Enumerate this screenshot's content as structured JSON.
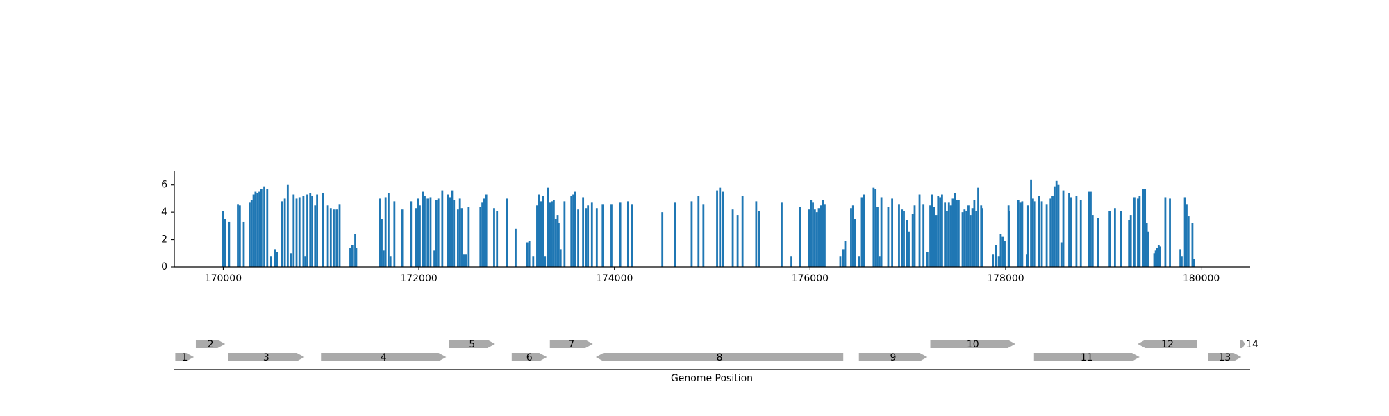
{
  "chart_data": {
    "type": "bar",
    "xlabel": "Genome Position",
    "color": "#1f77b4",
    "gene_color": "#aaaaaa",
    "xlim": [
      169500,
      180500
    ],
    "ylim": [
      0,
      7
    ],
    "xticks": [
      170000,
      172000,
      174000,
      176000,
      178000,
      180000
    ],
    "yticks": [
      0,
      2,
      4,
      6
    ],
    "x": [
      170000,
      170020,
      170060,
      170150,
      170170,
      170210,
      170270,
      170290,
      170310,
      170330,
      170350,
      170370,
      170390,
      170420,
      170450,
      170490,
      170530,
      170550,
      170600,
      170630,
      170660,
      170690,
      170720,
      170750,
      170780,
      170820,
      170840,
      170860,
      170890,
      170910,
      170940,
      170960,
      171020,
      171070,
      171100,
      171130,
      171160,
      171190,
      171300,
      171320,
      171350,
      171360,
      171600,
      171620,
      171640,
      171660,
      171690,
      171710,
      171750,
      171830,
      171920,
      171970,
      171990,
      172010,
      172040,
      172060,
      172090,
      172120,
      172160,
      172180,
      172200,
      172240,
      172300,
      172320,
      172340,
      172360,
      172400,
      172420,
      172440,
      172460,
      172480,
      172510,
      172630,
      172650,
      172670,
      172690,
      172770,
      172800,
      172900,
      172990,
      173110,
      173130,
      173170,
      173210,
      173230,
      173250,
      173270,
      173290,
      173320,
      173340,
      173360,
      173380,
      173400,
      173420,
      173430,
      173450,
      173490,
      173560,
      173580,
      173600,
      173630,
      173680,
      173710,
      173730,
      173770,
      173820,
      173880,
      173970,
      174060,
      174140,
      174180,
      174490,
      174620,
      174790,
      174860,
      174910,
      175050,
      175080,
      175110,
      175210,
      175260,
      175310,
      175450,
      175480,
      175710,
      175810,
      175900,
      175990,
      176010,
      176030,
      176050,
      176070,
      176090,
      176110,
      176130,
      176150,
      176310,
      176340,
      176360,
      176420,
      176440,
      176460,
      176500,
      176530,
      176550,
      176650,
      176670,
      176690,
      176710,
      176730,
      176800,
      176840,
      176910,
      176940,
      176960,
      176990,
      177010,
      177050,
      177070,
      177120,
      177160,
      177200,
      177230,
      177250,
      177270,
      177290,
      177310,
      177330,
      177350,
      177380,
      177400,
      177420,
      177440,
      177460,
      177480,
      177500,
      177520,
      177560,
      177580,
      177600,
      177620,
      177640,
      177660,
      177680,
      177700,
      177720,
      177750,
      177760,
      177870,
      177900,
      177930,
      177950,
      177970,
      177990,
      178030,
      178040,
      178130,
      178150,
      178170,
      178220,
      178230,
      178260,
      178280,
      178300,
      178340,
      178370,
      178420,
      178460,
      178480,
      178500,
      178520,
      178540,
      178570,
      178590,
      178650,
      178670,
      178724,
      178769,
      178850,
      178870,
      178890,
      178945,
      179063,
      179118,
      179180,
      179262,
      179280,
      179317,
      179353,
      179370,
      179407,
      179425,
      179443,
      179455,
      179520,
      179535,
      179550,
      179565,
      179580,
      179633,
      179680,
      179787,
      179800,
      179833,
      179850,
      179870,
      179910,
      179925
    ],
    "values": [
      4.1,
      3.5,
      3.3,
      4.6,
      4.5,
      3.3,
      4.7,
      4.9,
      5.3,
      5.5,
      5.4,
      5.5,
      5.7,
      5.9,
      5.7,
      0.8,
      1.3,
      1.1,
      4.8,
      5.0,
      6.0,
      1.0,
      5.3,
      5.0,
      5.1,
      5.2,
      0.8,
      5.3,
      5.4,
      5.2,
      4.5,
      5.3,
      5.4,
      4.5,
      4.3,
      4.2,
      4.2,
      4.6,
      1.4,
      1.6,
      2.4,
      1.4,
      5.0,
      3.5,
      1.2,
      5.1,
      5.4,
      0.8,
      4.8,
      4.2,
      4.8,
      4.3,
      5.0,
      4.5,
      5.5,
      5.2,
      5.0,
      5.1,
      1.2,
      4.9,
      5.0,
      5.6,
      5.3,
      5.1,
      5.6,
      4.9,
      4.2,
      5.0,
      4.3,
      0.9,
      0.9,
      4.4,
      4.4,
      4.7,
      5.0,
      5.3,
      4.3,
      4.1,
      5.0,
      2.8,
      1.8,
      1.9,
      0.8,
      4.5,
      5.3,
      4.8,
      5.2,
      0.8,
      5.8,
      4.7,
      4.8,
      4.9,
      3.5,
      3.8,
      3.2,
      1.3,
      4.8,
      5.2,
      5.3,
      5.5,
      4.2,
      5.1,
      4.3,
      4.5,
      4.7,
      4.3,
      4.6,
      4.6,
      4.7,
      4.8,
      4.6,
      4.0,
      4.7,
      4.8,
      5.2,
      4.6,
      5.6,
      5.8,
      5.5,
      4.2,
      3.8,
      5.2,
      4.8,
      4.1,
      4.7,
      0.8,
      4.4,
      4.2,
      4.9,
      4.7,
      4.2,
      4.0,
      4.3,
      4.5,
      4.9,
      4.6,
      0.8,
      1.3,
      1.9,
      4.3,
      4.5,
      3.5,
      0.8,
      5.1,
      5.3,
      5.8,
      5.7,
      4.4,
      0.8,
      5.1,
      4.4,
      5.0,
      4.6,
      4.2,
      4.1,
      3.4,
      2.6,
      3.9,
      4.5,
      5.3,
      4.6,
      1.1,
      4.5,
      5.3,
      4.4,
      3.8,
      5.2,
      5.1,
      5.3,
      4.7,
      4.1,
      4.7,
      4.5,
      5.0,
      5.4,
      4.9,
      4.9,
      4.0,
      4.2,
      4.1,
      4.5,
      3.8,
      4.3,
      4.9,
      4.1,
      5.8,
      4.5,
      4.3,
      0.9,
      1.6,
      0.8,
      2.4,
      2.2,
      1.9,
      4.5,
      4.1,
      4.9,
      4.7,
      4.8,
      0.9,
      4.5,
      6.4,
      5.0,
      4.8,
      5.2,
      4.8,
      4.6,
      5.0,
      5.2,
      5.9,
      6.3,
      6.0,
      1.8,
      5.6,
      5.4,
      5.1,
      5.2,
      4.9,
      5.5,
      5.5,
      3.8,
      3.6,
      4.1,
      4.3,
      4.1,
      3.4,
      3.8,
      5.1,
      5.0,
      5.2,
      5.7,
      5.7,
      3.2,
      2.6,
      1.0,
      1.2,
      1.4,
      1.6,
      1.5,
      5.1,
      5.0,
      1.3,
      0.8,
      5.1,
      4.6,
      3.7,
      3.2,
      0.6
    ],
    "genes": [
      {
        "label": "1",
        "start": 169510,
        "end": 169700,
        "strand": "+"
      },
      {
        "label": "2",
        "start": 169720,
        "end": 170020,
        "strand": "+"
      },
      {
        "label": "3",
        "start": 170050,
        "end": 170830,
        "strand": "+"
      },
      {
        "label": "4",
        "start": 171000,
        "end": 172280,
        "strand": "+"
      },
      {
        "label": "5",
        "start": 172310,
        "end": 172780,
        "strand": "+"
      },
      {
        "label": "6",
        "start": 172950,
        "end": 173310,
        "strand": "+"
      },
      {
        "label": "7",
        "start": 173340,
        "end": 173780,
        "strand": "+"
      },
      {
        "label": "8",
        "start": 173810,
        "end": 176340,
        "strand": "-"
      },
      {
        "label": "9",
        "start": 176500,
        "end": 177200,
        "strand": "+"
      },
      {
        "label": "10",
        "start": 177230,
        "end": 178100,
        "strand": "+"
      },
      {
        "label": "11",
        "start": 178290,
        "end": 179370,
        "strand": "+"
      },
      {
        "label": "12",
        "start": 179350,
        "end": 179960,
        "strand": "-"
      },
      {
        "label": "13",
        "start": 180070,
        "end": 180410,
        "strand": "+"
      },
      {
        "label": "14",
        "start": 180400,
        "end": 180450,
        "strand": "+"
      }
    ]
  }
}
